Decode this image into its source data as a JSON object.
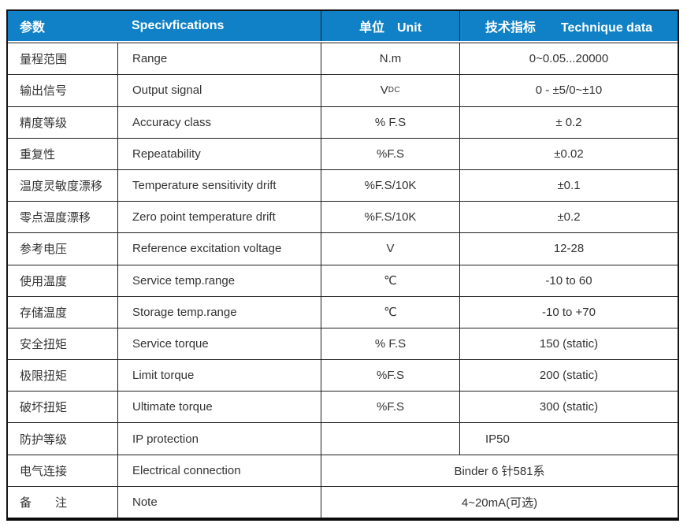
{
  "colors": {
    "header_bg": "#1081c6",
    "header_text": "#ffffff",
    "body_text": "#333333",
    "border": "#1f1f1f"
  },
  "table": {
    "header": {
      "param": "参数",
      "spec": "Specivfications",
      "unit": "单位　Unit",
      "data": "技术指标　　Technique data"
    },
    "rows": [
      {
        "param": "量程范围",
        "spec": "Range",
        "unit": "N.m",
        "value": "0~0.05...20000"
      },
      {
        "param": "输出信号",
        "spec": "Output signal",
        "unit": "V",
        "unit_sub": "DC",
        "value": "0 - ±5/0~±10"
      },
      {
        "param": "精度等级",
        "spec": "Accuracy class",
        "unit": "% F.S",
        "value": "± 0.2"
      },
      {
        "param": "重复性",
        "spec": "Repeatability",
        "unit": "%F.S",
        "value": "±0.02"
      },
      {
        "param": "温度灵敏度漂移",
        "spec": "Temperature sensitivity drift",
        "unit": "%F.S/10K",
        "value": "±0.1"
      },
      {
        "param": "零点温度漂移",
        "spec": "Zero point temperature drift",
        "unit": "%F.S/10K",
        "value": "±0.2"
      },
      {
        "param": "参考电压",
        "spec": "Reference excitation voltage",
        "unit": "V",
        "value": "12-28"
      },
      {
        "param": "使用温度",
        "spec": "Service temp.range",
        "unit": "℃",
        "value": "-10 to 60"
      },
      {
        "param": "存储温度",
        "spec": "Storage temp.range",
        "unit": "℃",
        "value": "-10 to +70"
      },
      {
        "param": "安全扭矩",
        "spec": "Service torque",
        "unit": "% F.S",
        "value": "150 (static)"
      },
      {
        "param": "极限扭矩",
        "spec": "Limit torque",
        "unit": "%F.S",
        "value": "200 (static)"
      },
      {
        "param": "破坏扭矩",
        "spec": "Ultimate torque",
        "unit": "%F.S",
        "value": "300 (static)"
      },
      {
        "param": "防护等级",
        "spec": "IP protection",
        "unit": "",
        "value": "IP50"
      },
      {
        "param": "电气连接",
        "spec": "Electrical connection",
        "merged_value": "Binder 6 针581系"
      },
      {
        "param": "备　　注",
        "spec": "Note",
        "merged_value": "4~20mA(可选)"
      }
    ]
  }
}
